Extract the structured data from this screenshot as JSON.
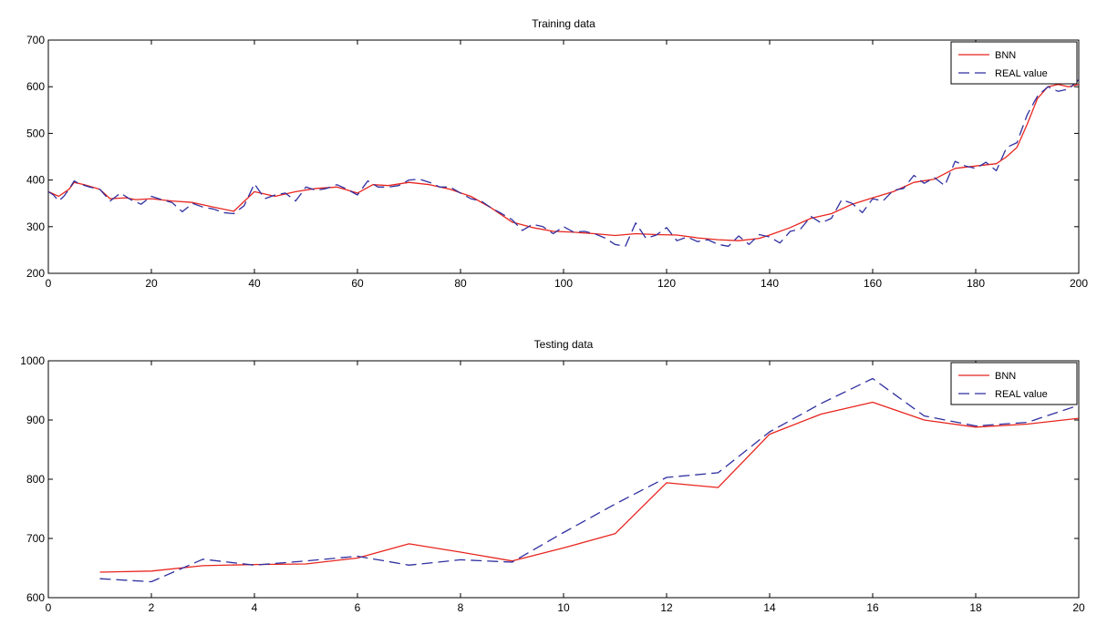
{
  "colors": {
    "bnn": "#e8251e",
    "real": "#2f2fa0",
    "background": "#ffffff",
    "axes": "#000000"
  },
  "chart_data": [
    {
      "type": "line",
      "title": "Training data",
      "xlabel": "",
      "ylabel": "",
      "xlim": [
        0,
        200
      ],
      "ylim": [
        200,
        700
      ],
      "xticks": [
        0,
        20,
        40,
        60,
        80,
        100,
        120,
        140,
        160,
        180,
        200
      ],
      "yticks": [
        200,
        300,
        400,
        500,
        600,
        700
      ],
      "grid": false,
      "legend_position": "top-right",
      "series": [
        {
          "name": "BNN",
          "style": "solid",
          "x": [
            0,
            2,
            4,
            5,
            7,
            10,
            12,
            15,
            17,
            20,
            24,
            28,
            32,
            36,
            40,
            44,
            48,
            52,
            56,
            60,
            63,
            66,
            70,
            74,
            78,
            82,
            86,
            90,
            94,
            98,
            102,
            106,
            110,
            114,
            118,
            122,
            126,
            130,
            134,
            138,
            140,
            144,
            148,
            152,
            156,
            160,
            164,
            168,
            172,
            176,
            180,
            184,
            186,
            188,
            190,
            192,
            194,
            196,
            198,
            200
          ],
          "y": [
            375,
            365,
            380,
            395,
            390,
            380,
            360,
            362,
            358,
            360,
            355,
            352,
            342,
            333,
            375,
            365,
            375,
            382,
            385,
            372,
            390,
            388,
            395,
            390,
            380,
            365,
            340,
            310,
            298,
            290,
            288,
            285,
            281,
            285,
            283,
            282,
            276,
            272,
            270,
            275,
            282,
            298,
            318,
            328,
            348,
            362,
            375,
            395,
            402,
            425,
            430,
            435,
            450,
            470,
            520,
            575,
            600,
            605,
            600,
            605
          ]
        },
        {
          "name": "REAL value",
          "style": "dashed",
          "x": [
            0,
            1,
            2,
            3,
            4,
            5,
            6,
            8,
            10,
            12,
            14,
            16,
            18,
            20,
            22,
            24,
            26,
            28,
            30,
            32,
            34,
            36,
            38,
            40,
            42,
            44,
            46,
            48,
            50,
            52,
            54,
            56,
            58,
            60,
            62,
            64,
            66,
            68,
            70,
            72,
            74,
            76,
            78,
            80,
            82,
            84,
            86,
            88,
            90,
            92,
            94,
            96,
            98,
            100,
            102,
            104,
            106,
            108,
            110,
            112,
            114,
            116,
            118,
            120,
            122,
            124,
            126,
            128,
            130,
            132,
            134,
            136,
            138,
            140,
            142,
            144,
            146,
            148,
            150,
            152,
            154,
            156,
            158,
            160,
            162,
            164,
            166,
            168,
            170,
            172,
            174,
            176,
            178,
            180,
            182,
            184,
            186,
            188,
            190,
            192,
            194,
            196,
            198,
            200
          ],
          "y": [
            375,
            368,
            355,
            365,
            380,
            398,
            392,
            385,
            380,
            355,
            372,
            358,
            348,
            365,
            358,
            352,
            332,
            350,
            342,
            338,
            330,
            328,
            345,
            392,
            360,
            368,
            372,
            355,
            385,
            378,
            382,
            390,
            380,
            368,
            398,
            385,
            385,
            388,
            400,
            402,
            395,
            385,
            385,
            372,
            360,
            355,
            340,
            328,
            315,
            292,
            305,
            300,
            285,
            300,
            288,
            290,
            285,
            276,
            262,
            258,
            308,
            275,
            282,
            298,
            270,
            278,
            268,
            272,
            262,
            258,
            280,
            262,
            283,
            278,
            265,
            290,
            295,
            322,
            308,
            318,
            358,
            350,
            330,
            360,
            355,
            378,
            382,
            410,
            393,
            405,
            388,
            440,
            430,
            425,
            438,
            420,
            470,
            480,
            540,
            580,
            600,
            590,
            595,
            615
          ]
        }
      ]
    },
    {
      "type": "line",
      "title": "Testing data",
      "xlabel": "",
      "ylabel": "",
      "xlim": [
        0,
        20
      ],
      "ylim": [
        600,
        1000
      ],
      "xticks": [
        0,
        2,
        4,
        6,
        8,
        10,
        12,
        14,
        16,
        18,
        20
      ],
      "yticks": [
        600,
        700,
        800,
        900,
        1000
      ],
      "grid": false,
      "legend_position": "top-right",
      "series": [
        {
          "name": "BNN",
          "style": "solid",
          "x": [
            1,
            2,
            3,
            4,
            5,
            6,
            7,
            8,
            9,
            10,
            11,
            12,
            13,
            14,
            15,
            16,
            17,
            18,
            19,
            20
          ],
          "y": [
            643,
            645,
            654,
            656,
            657,
            667,
            691,
            677,
            662,
            684,
            708,
            794,
            786,
            876,
            910,
            930,
            900,
            888,
            893,
            903
          ]
        },
        {
          "name": "REAL value",
          "style": "dashed",
          "x": [
            1,
            2,
            3,
            4,
            5,
            6,
            7,
            8,
            9,
            10,
            11,
            12,
            13,
            14,
            15,
            16,
            17,
            18,
            19,
            20
          ],
          "y": [
            632,
            627,
            665,
            655,
            662,
            670,
            655,
            664,
            660,
            710,
            758,
            803,
            811,
            880,
            928,
            970,
            907,
            890,
            896,
            925
          ]
        }
      ]
    }
  ]
}
